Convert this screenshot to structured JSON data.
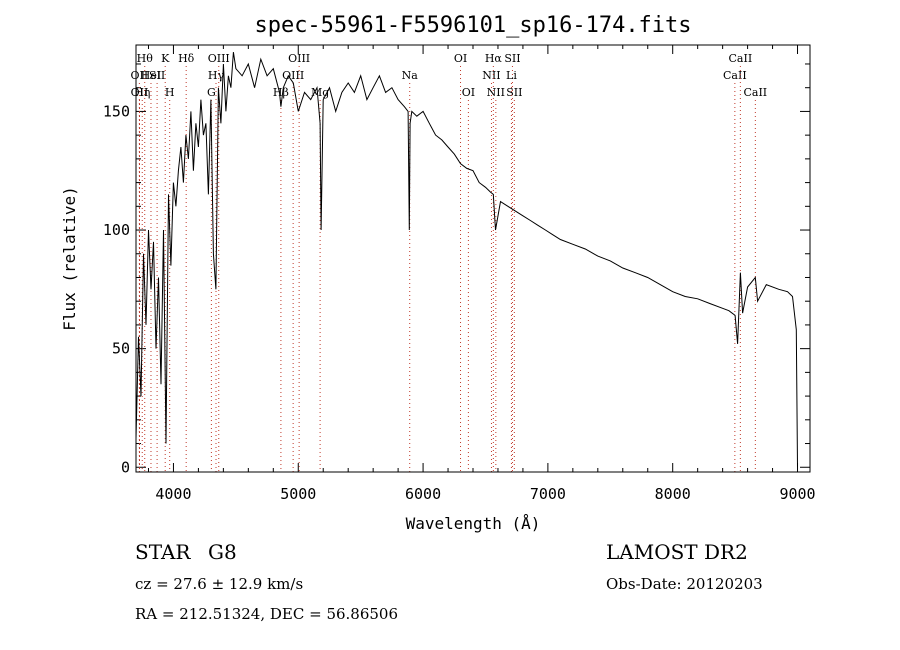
{
  "chart_data": {
    "type": "line",
    "title": "spec-55961-F5596101_sp16-174.fits",
    "xlabel": "Wavelength (Å)",
    "ylabel": "Flux (relative)",
    "xlim": [
      3700,
      9100
    ],
    "ylim": [
      -2,
      178
    ],
    "xticks": [
      4000,
      5000,
      6000,
      7000,
      8000,
      9000
    ],
    "yticks": [
      0,
      50,
      100,
      150
    ],
    "grid": false,
    "series": [
      {
        "x": [
          3700,
          3720,
          3740,
          3760,
          3780,
          3800,
          3820,
          3840,
          3860,
          3880,
          3900,
          3920,
          3940,
          3960,
          3980,
          4000,
          4020,
          4040,
          4060,
          4080,
          4100,
          4120,
          4140,
          4160,
          4180,
          4200,
          4220,
          4240,
          4260,
          4280,
          4300,
          4320,
          4340,
          4360,
          4380,
          4400,
          4420,
          4440,
          4460,
          4480,
          4500,
          4550,
          4600,
          4650,
          4700,
          4750,
          4800,
          4850,
          4861,
          4880,
          4920,
          4960,
          5000,
          5050,
          5100,
          5150,
          5175,
          5183,
          5200,
          5250,
          5300,
          5350,
          5400,
          5450,
          5500,
          5550,
          5600,
          5650,
          5700,
          5750,
          5800,
          5850,
          5880,
          5890,
          5896,
          5910,
          5950,
          6000,
          6050,
          6100,
          6150,
          6200,
          6250,
          6300,
          6350,
          6400,
          6450,
          6500,
          6540,
          6563,
          6580,
          6620,
          6680,
          6740,
          6800,
          6860,
          6920,
          6980,
          7040,
          7100,
          7200,
          7300,
          7400,
          7500,
          7600,
          7700,
          7800,
          7900,
          8000,
          8100,
          8200,
          8300,
          8400,
          8450,
          8500,
          8520,
          8542,
          8560,
          8600,
          8662,
          8680,
          8750,
          8850,
          8920,
          8960,
          8990,
          9000
        ],
        "y": [
          12,
          55,
          30,
          90,
          60,
          100,
          75,
          95,
          50,
          80,
          35,
          100,
          10,
          115,
          85,
          120,
          110,
          125,
          135,
          120,
          140,
          130,
          150,
          125,
          145,
          135,
          155,
          140,
          145,
          115,
          155,
          90,
          75,
          160,
          145,
          170,
          150,
          165,
          160,
          175,
          168,
          165,
          170,
          160,
          172,
          165,
          168,
          158,
          152,
          160,
          165,
          162,
          150,
          158,
          155,
          160,
          145,
          100,
          155,
          160,
          150,
          158,
          162,
          158,
          165,
          155,
          160,
          165,
          158,
          160,
          155,
          152,
          150,
          100,
          145,
          150,
          148,
          150,
          145,
          140,
          138,
          135,
          132,
          128,
          126,
          125,
          120,
          118,
          116,
          115,
          100,
          112,
          110,
          108,
          106,
          104,
          102,
          100,
          98,
          96,
          94,
          92,
          89,
          87,
          84,
          82,
          80,
          77,
          74,
          72,
          71,
          69,
          67,
          66,
          64,
          52,
          82,
          65,
          76,
          80,
          70,
          77,
          75,
          74,
          72,
          58,
          0
        ]
      }
    ],
    "line_markers": [
      {
        "x": 3727,
        "row": 1,
        "label": "OII"
      },
      {
        "x": 3728,
        "row": 2,
        "label": "OII"
      },
      {
        "x": 3750,
        "row": 2,
        "label": "Hη"
      },
      {
        "x": 3770,
        "row": 0,
        "label": "Hθ"
      },
      {
        "x": 3820,
        "row": 1,
        "label": "HeI"
      },
      {
        "x": 3869,
        "row": 1,
        "label": "SII"
      },
      {
        "x": 3934,
        "row": 0,
        "label": "K"
      },
      {
        "x": 3970,
        "row": 2,
        "label": "H"
      },
      {
        "x": 4102,
        "row": 0,
        "label": "Hδ"
      },
      {
        "x": 4304,
        "row": 2,
        "label": "G"
      },
      {
        "x": 4341,
        "row": 1,
        "label": "Hγ"
      },
      {
        "x": 4363,
        "row": 0,
        "label": "OIII"
      },
      {
        "x": 4861,
        "row": 2,
        "label": "Hβ"
      },
      {
        "x": 4959,
        "row": 1,
        "label": "OIII"
      },
      {
        "x": 5007,
        "row": 0,
        "label": "OIII"
      },
      {
        "x": 5175,
        "row": 2,
        "label": "Mg"
      },
      {
        "x": 5893,
        "row": 1,
        "label": "Na"
      },
      {
        "x": 6300,
        "row": 0,
        "label": "OI"
      },
      {
        "x": 6363,
        "row": 2,
        "label": "OI"
      },
      {
        "x": 6548,
        "row": 1,
        "label": "NII"
      },
      {
        "x": 6563,
        "row": 0,
        "label": "Hα"
      },
      {
        "x": 6583,
        "row": 2,
        "label": "NII"
      },
      {
        "x": 6716,
        "row": 0,
        "label": "SII"
      },
      {
        "x": 6731,
        "row": 2,
        "label": "SII"
      },
      {
        "x": 6708,
        "row": 1,
        "label": "Li"
      },
      {
        "x": 8498,
        "row": 1,
        "label": "CaII"
      },
      {
        "x": 8542,
        "row": 0,
        "label": "CaII"
      },
      {
        "x": 8662,
        "row": 2,
        "label": "CaII"
      }
    ]
  },
  "info": {
    "class": "STAR",
    "subclass": "G8",
    "survey": "LAMOST DR2",
    "redshift": "cz = 27.6 ± 12.9 km/s",
    "obs_date": "Obs-Date: 20120203",
    "coords": "RA = 212.51324, DEC =  56.86506"
  }
}
